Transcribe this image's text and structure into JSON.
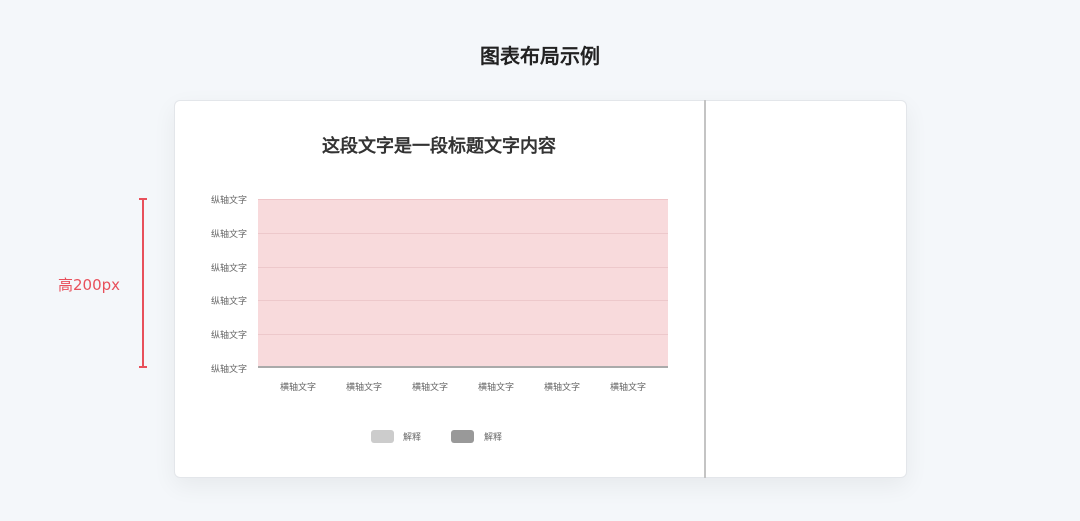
{
  "page_title": "图表布局示例",
  "chart_title": "这段文字是一段标题文字内容",
  "y_labels": [
    "纵轴文字",
    "纵轴文字",
    "纵轴文字",
    "纵轴文字",
    "纵轴文字",
    "纵轴文字"
  ],
  "x_labels": [
    "横轴文字",
    "横轴文字",
    "横轴文字",
    "横轴文字",
    "横轴文字",
    "横轴文字"
  ],
  "legend": [
    {
      "label": "解释",
      "color": "#cccccc"
    },
    {
      "label": "解释",
      "color": "#999999"
    }
  ],
  "annotation": {
    "height_label": "高200px",
    "color": "#e8505b"
  },
  "colors": {
    "plot_area": "#f8dadc"
  }
}
